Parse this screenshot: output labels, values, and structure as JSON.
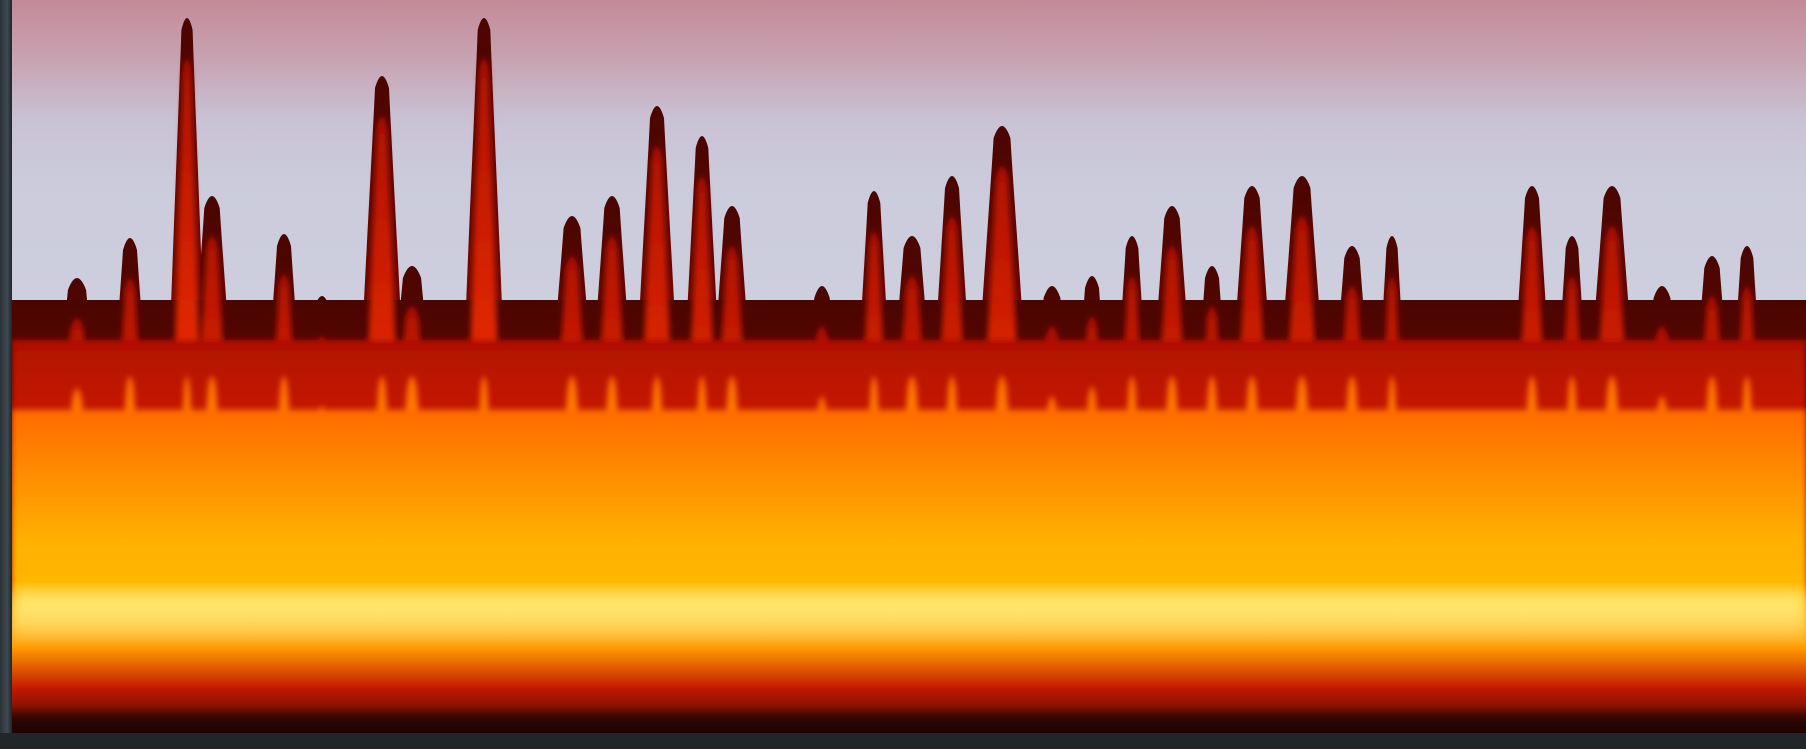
{
  "scene": {
    "subject": "fire-flames",
    "sky_colors": [
      "#c48a98",
      "#cbcbdb",
      "#d2d3e3"
    ],
    "flame_colors": {
      "outer": "#3a0400",
      "dark_red": "#8a0a00",
      "red": "#d61a00",
      "orange": "#ff7a00",
      "yellow": "#ffd21a",
      "core": "#fffbe6"
    }
  }
}
